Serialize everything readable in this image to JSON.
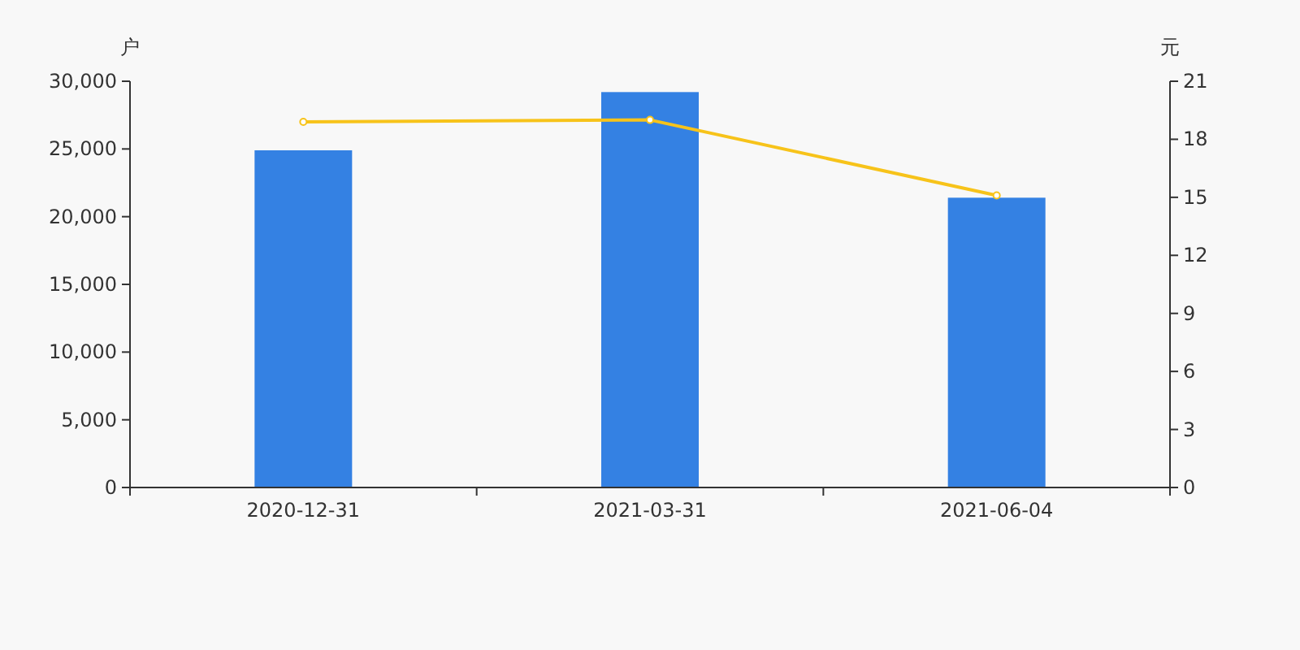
{
  "chart_data": {
    "type": "bar",
    "ylabel": "户",
    "y2label": "元",
    "categories": [
      "2020-12-31",
      "2021-03-31",
      "2021-06-04"
    ],
    "series": [
      {
        "color": "#3481e3",
        "values": [
          24900,
          29200,
          21400
        ]
      },
      {
        "type": "line",
        "axis": "y2",
        "color": "#f7c31a",
        "marker": "circle",
        "values": [
          18.9,
          19.0,
          15.1
        ]
      }
    ],
    "ylim": [
      0,
      30000
    ],
    "yticks": [
      {
        "value": 0,
        "label": "0"
      },
      {
        "value": 5000,
        "label": "5,000"
      },
      {
        "value": 10000,
        "label": "10,000"
      },
      {
        "value": 15000,
        "label": "15,000"
      },
      {
        "value": 20000,
        "label": "20,000"
      },
      {
        "value": 25000,
        "label": "25,000"
      },
      {
        "value": 30000,
        "label": "30,000"
      }
    ],
    "y2lim": [
      0,
      21
    ],
    "y2ticks": [
      0,
      3,
      6,
      9,
      12,
      15,
      18,
      21
    ]
  }
}
